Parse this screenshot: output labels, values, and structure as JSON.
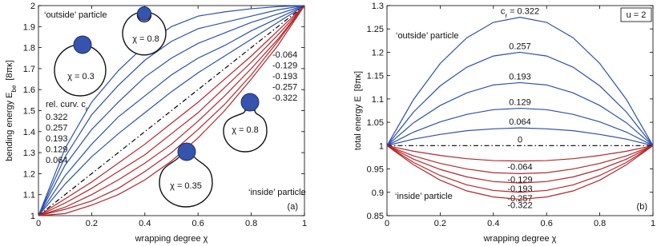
{
  "chart_data": [
    {
      "type": "line",
      "xlabel": "wrapping degree χ",
      "ylabel": {
        "text": "bending energy E",
        "sub": "be",
        "unit": "[8πκ]"
      },
      "xlim": [
        0,
        1
      ],
      "ylim": [
        1,
        2
      ],
      "xticks": [
        0,
        0.2,
        0.4,
        0.6,
        0.8,
        1
      ],
      "yticks": [
        1,
        1.1,
        1.2,
        1.3,
        1.4,
        1.5,
        1.6,
        1.7,
        1.8,
        1.9,
        2
      ],
      "grid": false,
      "x": [
        0,
        0.1,
        0.2,
        0.3,
        0.4,
        0.5,
        0.6,
        0.7,
        0.8,
        0.9,
        1
      ],
      "series": [
        {
          "name": "0.322",
          "color": "#2b50aa",
          "values": [
            1,
            1.32,
            1.54,
            1.69,
            1.81,
            1.9,
            1.95,
            1.97,
            1.985,
            1.995,
            2
          ]
        },
        {
          "name": "0.257",
          "color": "#2b50aa",
          "values": [
            1,
            1.28,
            1.48,
            1.62,
            1.74,
            1.83,
            1.89,
            1.92,
            1.95,
            1.98,
            2
          ]
        },
        {
          "name": "0.193",
          "color": "#2b50aa",
          "values": [
            1,
            1.24,
            1.41,
            1.54,
            1.66,
            1.75,
            1.82,
            1.87,
            1.92,
            1.96,
            2
          ]
        },
        {
          "name": "0.129",
          "color": "#2b50aa",
          "values": [
            1,
            1.19,
            1.34,
            1.47,
            1.57,
            1.67,
            1.75,
            1.81,
            1.88,
            1.94,
            2
          ]
        },
        {
          "name": "0.064",
          "color": "#2b50aa",
          "values": [
            1,
            1.15,
            1.28,
            1.39,
            1.49,
            1.59,
            1.68,
            1.76,
            1.84,
            1.92,
            2
          ]
        },
        {
          "color": "#000000",
          "linestyle": "dashdot",
          "values": [
            1,
            1.1,
            1.2,
            1.3,
            1.4,
            1.5,
            1.6,
            1.7,
            1.8,
            1.9,
            2
          ]
        },
        {
          "name": "-0.064",
          "color": "#b5262a",
          "values": [
            1,
            1.08,
            1.16,
            1.25,
            1.34,
            1.44,
            1.54,
            1.65,
            1.76,
            1.88,
            2
          ]
        },
        {
          "name": "-0.129",
          "color": "#b5262a",
          "values": [
            1,
            1.06,
            1.13,
            1.21,
            1.29,
            1.39,
            1.49,
            1.61,
            1.73,
            1.86,
            2
          ]
        },
        {
          "name": "-0.193",
          "color": "#b5262a",
          "values": [
            1,
            1.04,
            1.1,
            1.17,
            1.25,
            1.34,
            1.45,
            1.57,
            1.7,
            1.84,
            2
          ]
        },
        {
          "name": "-0.257",
          "color": "#b5262a",
          "values": [
            1,
            1.03,
            1.07,
            1.13,
            1.21,
            1.3,
            1.41,
            1.53,
            1.67,
            1.83,
            2
          ]
        },
        {
          "name": "-0.322",
          "color": "#b5262a",
          "values": [
            1,
            1.01,
            1.05,
            1.1,
            1.17,
            1.26,
            1.37,
            1.5,
            1.65,
            1.81,
            2
          ]
        }
      ],
      "annotations": {
        "outside": "‘outside’ particle",
        "inside": "‘inside’ particle",
        "relcurv": {
          "text": "rel. curv. c",
          "sub": "r"
        },
        "chi": [
          "χ = 0.8",
          "χ = 0.3",
          "χ = 0.8",
          "χ = 0.35"
        ],
        "panel": "(a)"
      }
    },
    {
      "type": "line",
      "xlabel": "wrapping degree χ",
      "ylabel": {
        "text": "total energy E",
        "unit": "[8πκ]"
      },
      "xlim": [
        0,
        1
      ],
      "ylim": [
        0.85,
        1.3
      ],
      "xticks": [
        0,
        0.2,
        0.4,
        0.6,
        0.8,
        1
      ],
      "yticks": [
        0.85,
        0.9,
        0.95,
        1,
        1.05,
        1.1,
        1.15,
        1.2,
        1.25,
        1.3
      ],
      "grid": false,
      "x": [
        0,
        0.1,
        0.2,
        0.3,
        0.4,
        0.5,
        0.6,
        0.7,
        0.8,
        0.9,
        1
      ],
      "series": [
        {
          "name": "0.322",
          "color": "#2b50aa",
          "values": [
            1,
            1.099,
            1.176,
            1.231,
            1.264,
            1.275,
            1.264,
            1.231,
            1.176,
            1.099,
            1
          ]
        },
        {
          "name": "0.257",
          "color": "#2b50aa",
          "values": [
            1,
            1.072,
            1.128,
            1.168,
            1.192,
            1.2,
            1.192,
            1.168,
            1.128,
            1.072,
            1
          ]
        },
        {
          "name": "0.193",
          "color": "#2b50aa",
          "values": [
            1,
            1.049,
            1.086,
            1.113,
            1.13,
            1.135,
            1.13,
            1.113,
            1.086,
            1.049,
            1
          ]
        },
        {
          "name": "0.129",
          "color": "#2b50aa",
          "values": [
            1,
            1.029,
            1.051,
            1.067,
            1.077,
            1.08,
            1.077,
            1.067,
            1.051,
            1.029,
            1
          ]
        },
        {
          "name": "0.064",
          "color": "#2b50aa",
          "values": [
            1,
            1.014,
            1.024,
            1.032,
            1.036,
            1.038,
            1.036,
            1.032,
            1.024,
            1.014,
            1
          ]
        },
        {
          "name": "0",
          "color": "#000000",
          "linestyle": "dashdot",
          "values": [
            1,
            1,
            1,
            1,
            1,
            1,
            1,
            1,
            1,
            1,
            1
          ]
        },
        {
          "name": "-0.064",
          "color": "#b5262a",
          "values": [
            1,
            0.988,
            0.979,
            0.972,
            0.968,
            0.967,
            0.968,
            0.972,
            0.979,
            0.988,
            1
          ]
        },
        {
          "name": "-0.129",
          "color": "#b5262a",
          "values": [
            1,
            0.978,
            0.962,
            0.95,
            0.942,
            0.94,
            0.942,
            0.95,
            0.962,
            0.978,
            1
          ]
        },
        {
          "name": "-0.193",
          "color": "#b5262a",
          "values": [
            1,
            0.971,
            0.949,
            0.933,
            0.923,
            0.92,
            0.923,
            0.933,
            0.949,
            0.971,
            1
          ]
        },
        {
          "name": "-0.257",
          "color": "#b5262a",
          "values": [
            1,
            0.964,
            0.936,
            0.916,
            0.904,
            0.9,
            0.904,
            0.916,
            0.936,
            0.964,
            1
          ]
        },
        {
          "name": "-0.322",
          "color": "#b5262a",
          "values": [
            1,
            0.959,
            0.926,
            0.903,
            0.89,
            0.885,
            0.89,
            0.903,
            0.926,
            0.959,
            1
          ]
        }
      ],
      "annotations": {
        "outside": "‘outside’ particle",
        "inside": "‘inside’ particle",
        "param": "u = 2",
        "cr": {
          "text": "c",
          "sub": "r",
          "eq": "="
        },
        "panel": "(b)"
      }
    }
  ]
}
